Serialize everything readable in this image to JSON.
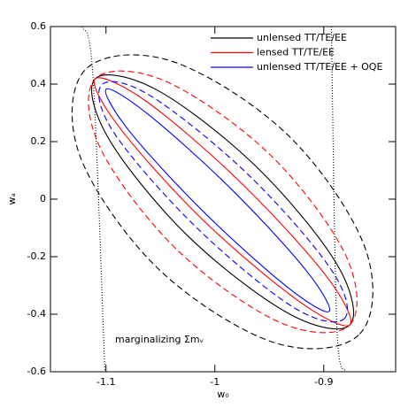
{
  "chart_data": {
    "type": "contour",
    "xlabel": "w₀",
    "ylabel": "wₐ",
    "annotation": "marginalizing Σmᵥ",
    "xlim": [
      -1.151,
      -0.834
    ],
    "ylim": [
      -0.6,
      0.6
    ],
    "xticks": [
      -1.1,
      -1,
      -0.9
    ],
    "yticks": [
      -0.6,
      -0.4,
      -0.2,
      0,
      0.2,
      0.4,
      0.6
    ],
    "series": [
      {
        "name": "unlensed TT/TE/EE",
        "color": "#000000",
        "dash": "solid",
        "closed": true,
        "x": [
          -0.876,
          -0.888,
          -0.962,
          -1.053,
          -1.11,
          -1.097,
          -1.024,
          -0.932
        ],
        "y": [
          -0.437,
          -0.226,
          0.113,
          0.379,
          0.418,
          0.207,
          -0.131,
          -0.398
        ]
      },
      {
        "name": "lensed TT/TE/EE",
        "color": "#ff0000",
        "dash": "solid",
        "closed": true,
        "x": [
          -0.876,
          -0.898,
          -0.976,
          -1.063,
          -1.11,
          -1.087,
          -1.01,
          -0.922
        ],
        "y": [
          -0.437,
          -0.266,
          0.057,
          0.34,
          0.418,
          0.246,
          -0.076,
          -0.357
        ]
      },
      {
        "name": "unlensed TT/TE/EE + OQE",
        "color": "#0000ff",
        "dash": "solid",
        "closed": true,
        "x": [
          -0.895,
          -0.917,
          -0.986,
          -1.062,
          -1.1,
          -1.078,
          -1.009,
          -0.933
        ],
        "y": [
          -0.39,
          -0.244,
          0.039,
          0.297,
          0.382,
          0.234,
          -0.049,
          -0.307
        ]
      },
      {
        "color": "#000000",
        "dash": "dashed",
        "closed": true,
        "x": [
          -0.867,
          -0.862,
          -0.933,
          -1.04,
          -1.119,
          -1.124,
          -1.052,
          -0.946
        ],
        "y": [
          -0.469,
          -0.17,
          0.223,
          0.48,
          0.45,
          0.151,
          -0.242,
          -0.498
        ]
      },
      {
        "color": "#ff0000",
        "dash": "dashed",
        "closed": true,
        "x": [
          -0.876,
          -0.88,
          -0.95,
          -1.046,
          -1.11,
          -1.105,
          -1.035,
          -0.94
        ],
        "y": [
          -0.437,
          -0.194,
          0.157,
          0.411,
          0.418,
          0.176,
          -0.175,
          -0.429
        ]
      },
      {
        "color": "#0000ff",
        "dash": "dashed",
        "closed": true,
        "x": [
          -0.881,
          -0.893,
          -0.969,
          -1.059,
          -1.104,
          -1.092,
          -1.016,
          -0.927
        ],
        "y": [
          -0.415,
          -0.246,
          0.084,
          0.359,
          0.397,
          0.227,
          -0.102,
          -0.378
        ]
      },
      {
        "color": "#000000",
        "dash": "dotted",
        "closed": false,
        "x": [
          -1.122,
          -1.112,
          -1.101
        ],
        "y": [
          0.6,
          0.43,
          -0.6
        ]
      },
      {
        "color": "#000000",
        "dash": "dotted",
        "closed": false,
        "x": [
          -0.893,
          -0.888,
          -0.88
        ],
        "y": [
          0.6,
          -0.44,
          -0.6
        ]
      }
    ]
  }
}
